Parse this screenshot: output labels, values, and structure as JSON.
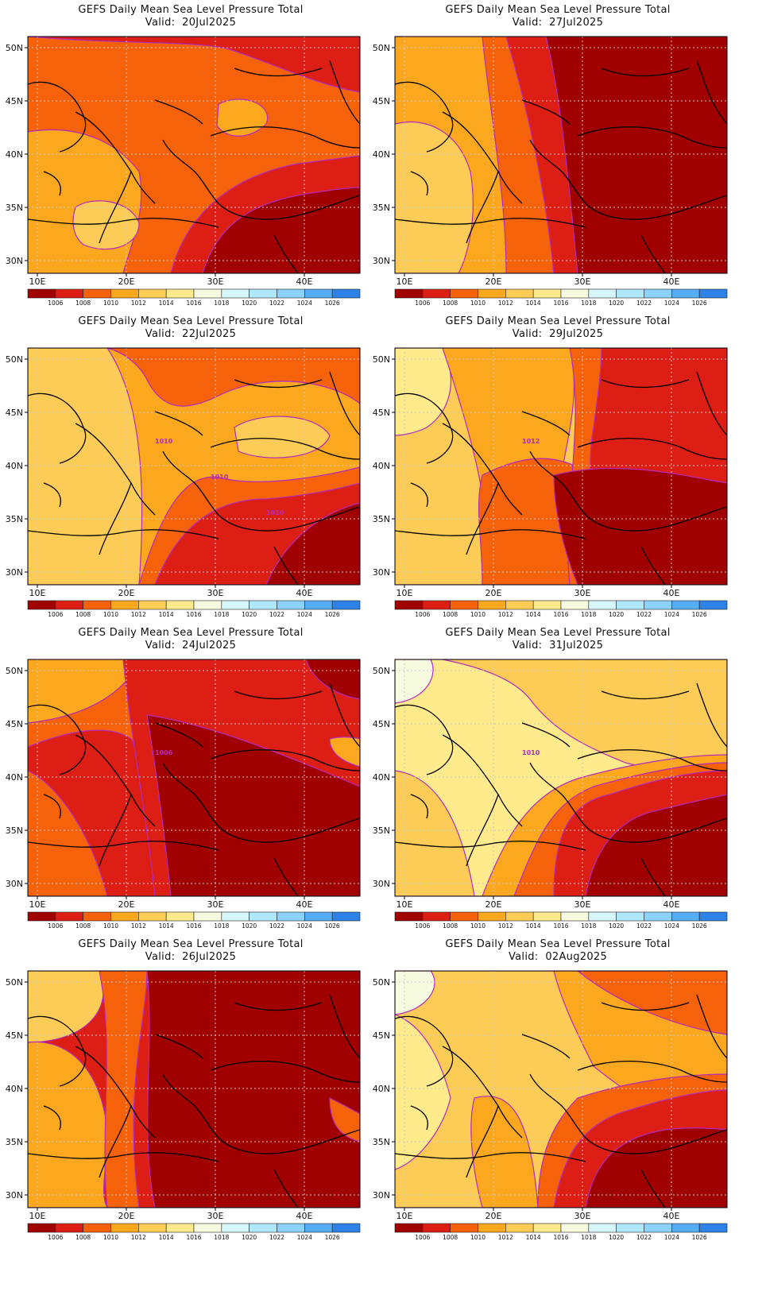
{
  "figure": {
    "panels": [
      {
        "title": "GEFS Daily Mean Sea Level Pressure Total",
        "valid": "Valid:  20Jul2025",
        "scheme": 1,
        "contour_labels": []
      },
      {
        "title": "GEFS Daily Mean Sea Level Pressure Total",
        "valid": "Valid:  27Jul2025",
        "scheme": 2,
        "contour_labels": []
      },
      {
        "title": "GEFS Daily Mean Sea Level Pressure Total",
        "valid": "Valid:  22Jul2025",
        "scheme": 3,
        "contour_labels": [
          "1010",
          "1010",
          "1010"
        ]
      },
      {
        "title": "GEFS Daily Mean Sea Level Pressure Total",
        "valid": "Valid:  29Jul2025",
        "scheme": 4,
        "contour_labels": [
          "1012"
        ]
      },
      {
        "title": "GEFS Daily Mean Sea Level Pressure Total",
        "valid": "Valid:  24Jul2025",
        "scheme": 5,
        "contour_labels": [
          "1006"
        ]
      },
      {
        "title": "GEFS Daily Mean Sea Level Pressure Total",
        "valid": "Valid:  31Jul2025",
        "scheme": 6,
        "contour_labels": [
          "1010"
        ]
      },
      {
        "title": "GEFS Daily Mean Sea Level Pressure Total",
        "valid": "Valid:  26Jul2025",
        "scheme": 7,
        "contour_labels": []
      },
      {
        "title": "GEFS Daily Mean Sea Level Pressure Total",
        "valid": "Valid:  02Aug2025",
        "scheme": 8,
        "contour_labels": []
      }
    ],
    "lat_labels": [
      "50N",
      "45N",
      "40N",
      "35N",
      "30N"
    ],
    "lon_labels": [
      "10E",
      "20E",
      "30E",
      "40E"
    ],
    "colorbar": {
      "tick_labels": [
        "1006",
        "1008",
        "1010",
        "1012",
        "1014",
        "1016",
        "1018",
        "1020",
        "1022",
        "1024",
        "1026"
      ],
      "colors": [
        "#a00000",
        "#dc1e14",
        "#f5620a",
        "#fba81e",
        "#fdcc57",
        "#ffea8c",
        "#f6fbe0",
        "#d6f6fc",
        "#b0e8fb",
        "#8cd2f8",
        "#55adf3",
        "#2d82e8"
      ]
    },
    "contour_color": "#b32bbd",
    "graticule_color": "#c8c8c8",
    "coastline_color": "#000000"
  }
}
